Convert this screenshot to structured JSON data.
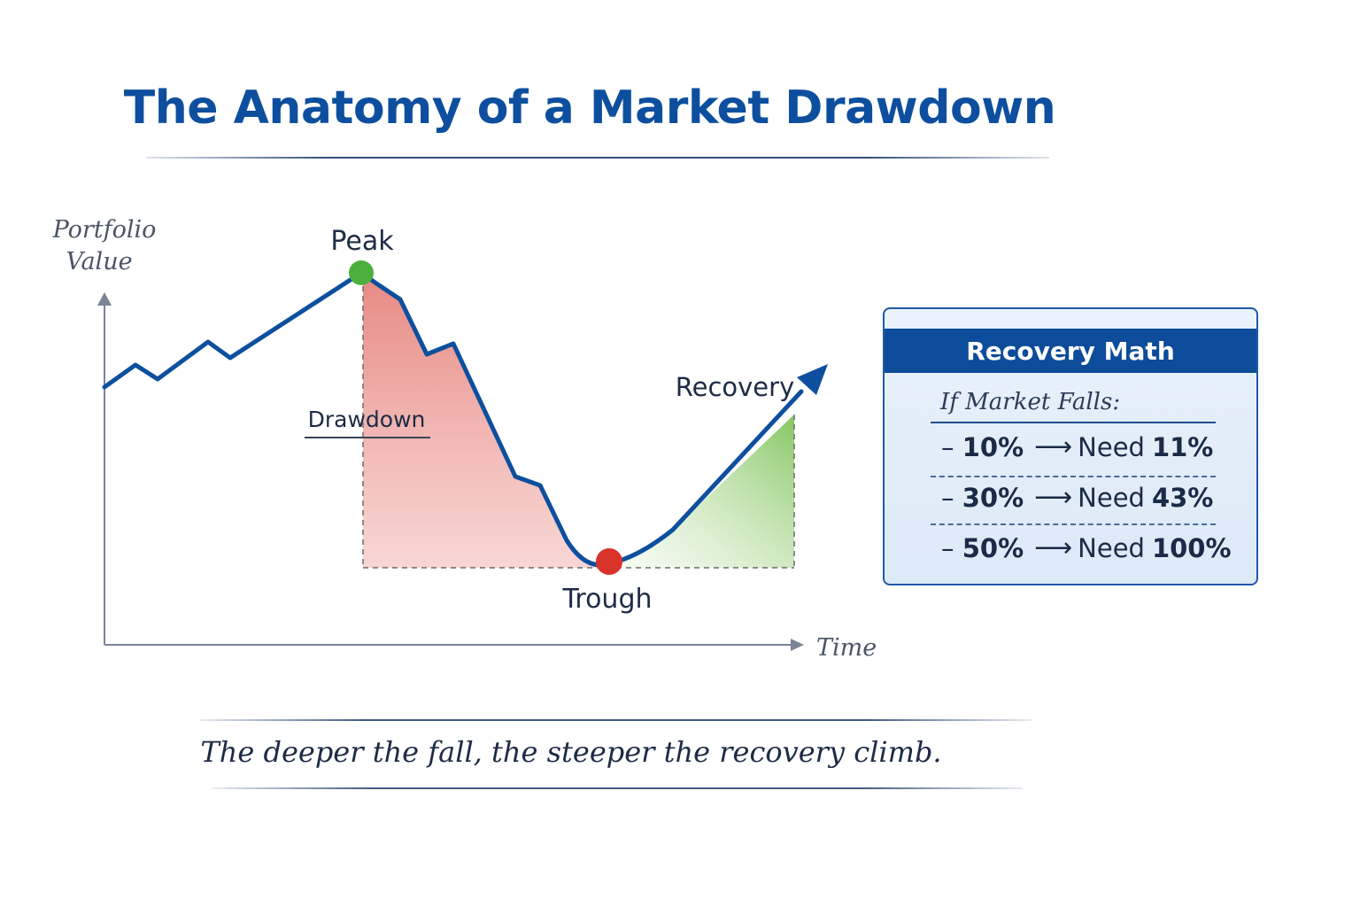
{
  "title": "The Anatomy of a Market Drawdown",
  "caption": "The deeper the fall, the steeper the recovery climb.",
  "chart": {
    "y_axis_label_line1": "Portfolio",
    "y_axis_label_line2": "Value",
    "x_axis_label": "Time",
    "peak_label": "Peak",
    "trough_label": "Trough",
    "drawdown_label": "Drawdown",
    "recovery_label": "Recovery"
  },
  "colors": {
    "line": "#0d4f9e",
    "peak_dot": "#4caf3c",
    "trough_dot": "#d9322a",
    "drawdown_fill": "#e98a84",
    "recovery_fill": "#8ccc6a",
    "accent": "#0c4c9a"
  },
  "panel": {
    "title": "Recovery Math",
    "subtitle": "If Market Falls:",
    "rows": [
      {
        "fall": "10%",
        "need_label": "Need",
        "need": "11%"
      },
      {
        "fall": "30%",
        "need_label": "Need",
        "need": "43%"
      },
      {
        "fall": "50%",
        "need_label": "Need",
        "need": "100%"
      }
    ]
  }
}
